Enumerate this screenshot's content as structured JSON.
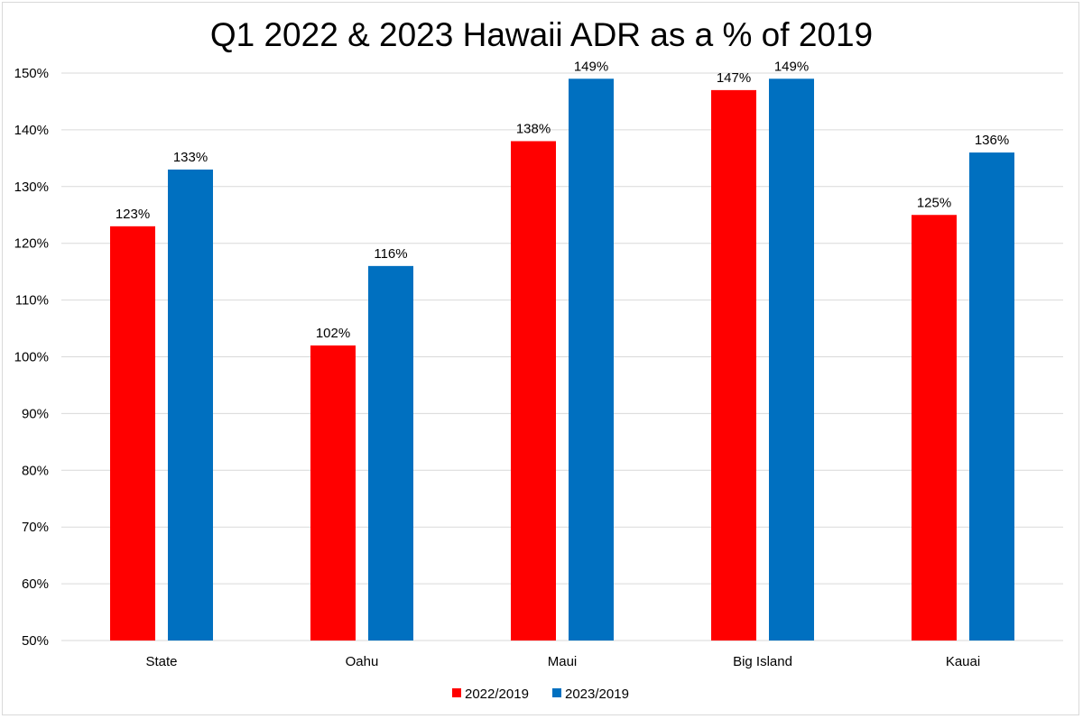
{
  "chart_data": {
    "type": "bar",
    "title": "Q1 2022 & 2023 Hawaii ADR as a % of 2019",
    "xlabel": "",
    "ylabel": "",
    "categories": [
      "State",
      "Oahu",
      "Maui",
      "Big Island",
      "Kauai"
    ],
    "series": [
      {
        "name": "2022/2019",
        "color": "#ff0000",
        "values": [
          123,
          102,
          138,
          147,
          125
        ],
        "labels": [
          "123%",
          "102%",
          "138%",
          "147%",
          "125%"
        ]
      },
      {
        "name": "2023/2019",
        "color": "#0070c0",
        "values": [
          133,
          116,
          149,
          149,
          136
        ],
        "labels": [
          "133%",
          "116%",
          "149%",
          "149%",
          "136%"
        ]
      }
    ],
    "ylim": [
      50,
      150
    ],
    "yticks": [
      50,
      60,
      70,
      80,
      90,
      100,
      110,
      120,
      130,
      140,
      150
    ],
    "ytick_labels": [
      "50%",
      "60%",
      "70%",
      "80%",
      "90%",
      "100%",
      "110%",
      "120%",
      "130%",
      "140%",
      "150%"
    ],
    "grid": true,
    "legend": "bottom-center"
  }
}
